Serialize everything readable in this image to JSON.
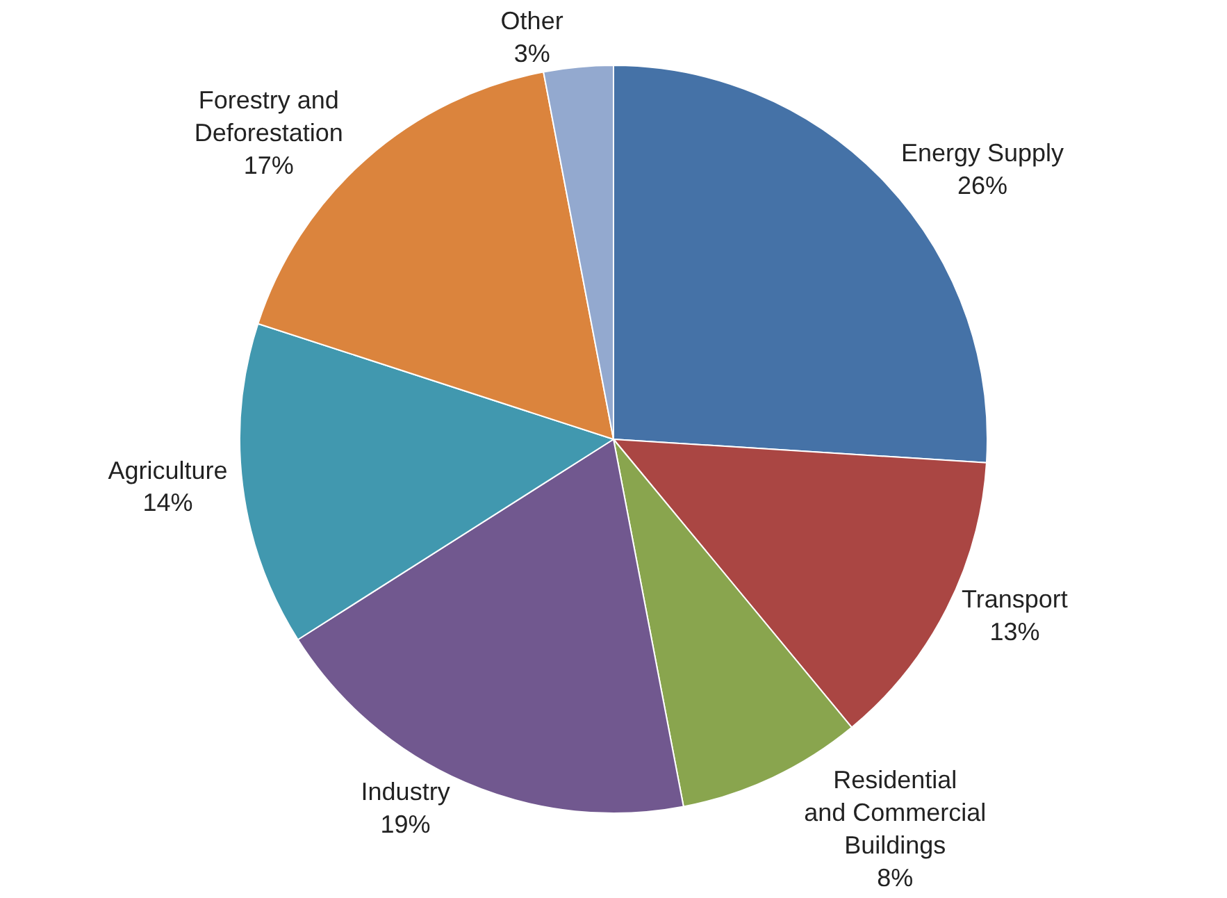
{
  "chart_data": {
    "type": "pie",
    "categories": [
      "Energy Supply",
      "Transport",
      "Residential and Commercial Buildings",
      "Industry",
      "Agriculture",
      "Forestry and Deforestation",
      "Other"
    ],
    "values": [
      26,
      13,
      8,
      19,
      14,
      17,
      3
    ],
    "value_labels": [
      "26%",
      "13%",
      "8%",
      "19%",
      "14%",
      "17%",
      "3%"
    ],
    "colors": [
      "#4572a7",
      "#aa4643",
      "#89a54e",
      "#71588f",
      "#4198af",
      "#db843d",
      "#93a9cf"
    ],
    "legend": false
  }
}
